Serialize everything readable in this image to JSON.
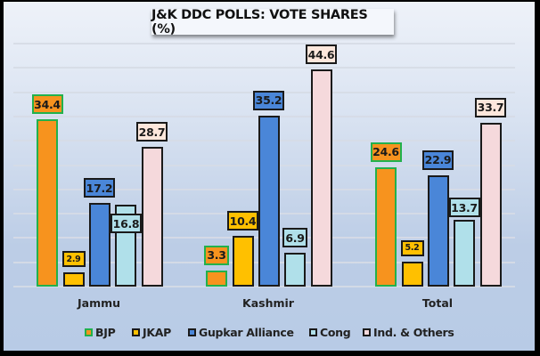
{
  "chart_data": {
    "type": "bar",
    "title": "J&K DDC POLLS: VOTE SHARES (%)",
    "xlabel": "",
    "ylabel": "",
    "ylim": [
      0,
      50
    ],
    "grid": true,
    "legend_position": "bottom",
    "categories": [
      "Jammu",
      "Kashmir",
      "Total"
    ],
    "series": [
      {
        "name": "BJP",
        "key": "bjp",
        "color": "#f7931e",
        "border": "#22b14c",
        "values": [
          34.4,
          3.3,
          24.6
        ]
      },
      {
        "name": "JKAP",
        "key": "jkap",
        "color": "#ffc000",
        "border": "#1a1a1a",
        "values": [
          2.9,
          10.4,
          5.2
        ]
      },
      {
        "name": "Gupkar Alliance",
        "key": "gupkar",
        "color": "#4a86d8",
        "border": "#1a1a1a",
        "values": [
          17.2,
          35.2,
          22.9
        ]
      },
      {
        "name": "Cong",
        "key": "cong",
        "color": "#b0e0ea",
        "border": "#1a1a1a",
        "values": [
          16.8,
          6.9,
          13.7
        ]
      },
      {
        "name": "Ind. & Others",
        "key": "ind",
        "color": "#f5d9dc",
        "border": "#1a1a1a",
        "values": [
          28.7,
          44.6,
          33.7
        ]
      }
    ],
    "data_labels": [
      [
        "34.4",
        "2.9",
        "17.2",
        "16.8",
        "28.7"
      ],
      [
        "3.3",
        "10.4",
        "35.2",
        "6.9",
        "44.6"
      ],
      [
        "24.6",
        "5.2",
        "22.9",
        "13.7",
        "33.7"
      ]
    ]
  },
  "label_colors": {
    "bjp": "#f7931e",
    "jkap": "#ffc000",
    "gupkar": "#4a86d8",
    "cong": "#b0e0ea",
    "ind": "#fde7dc"
  }
}
